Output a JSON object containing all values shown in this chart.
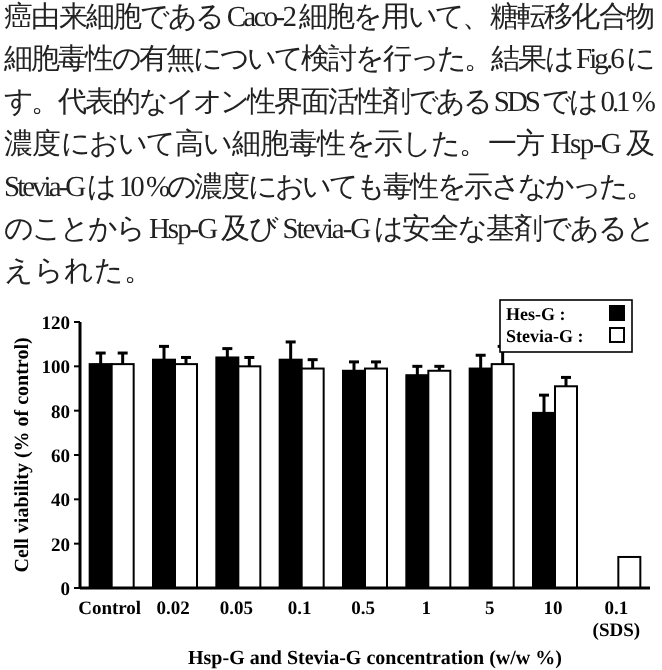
{
  "chart_data": {
    "type": "bar",
    "annotations": [
      "癌由来細胞である Caco-2 細胞を用いて、糖転移化合物",
      "細胞毒性の有無について検討を行った。結果は Fig.6 に",
      "す。代表的なイオン性界面活性剤である SDS では 0.1 %",
      "濃度において高い細胞毒性を示した。一方 Hsp-G 及",
      "Stevia-G は 10 %の濃度においても毒性を示さなかった。",
      "のことから Hsp-G 及び Stevia-G は安全な基剤であると",
      "えられた。"
    ],
    "xlabel": "Hsp-G and Stevia-G concentration (w/w %)",
    "ylabel": "Cell viability (% of control)",
    "categories": [
      "Control",
      "0.02",
      "0.05",
      "0.1",
      "0.5",
      "1",
      "5",
      "10",
      "0.1\n(SDS)"
    ],
    "series": [
      {
        "name": "Hes-G :",
        "color": "#000000",
        "values": [
          101,
          103,
          104,
          103,
          98,
          96,
          99,
          79,
          null
        ],
        "errors": [
          5,
          6,
          4,
          8,
          4,
          4,
          6,
          8,
          null
        ]
      },
      {
        "name": "Stevia-G :",
        "color": "#ffffff",
        "values": [
          101,
          101,
          100,
          99,
          99,
          98,
          101,
          91,
          14
        ],
        "errors": [
          5,
          3,
          4,
          4,
          3,
          2,
          8,
          4,
          null
        ]
      }
    ],
    "ylim": [
      0,
      120
    ],
    "yticks": [
      0,
      20,
      40,
      60,
      80,
      100,
      120
    ],
    "legend": "top right",
    "grid": false
  }
}
